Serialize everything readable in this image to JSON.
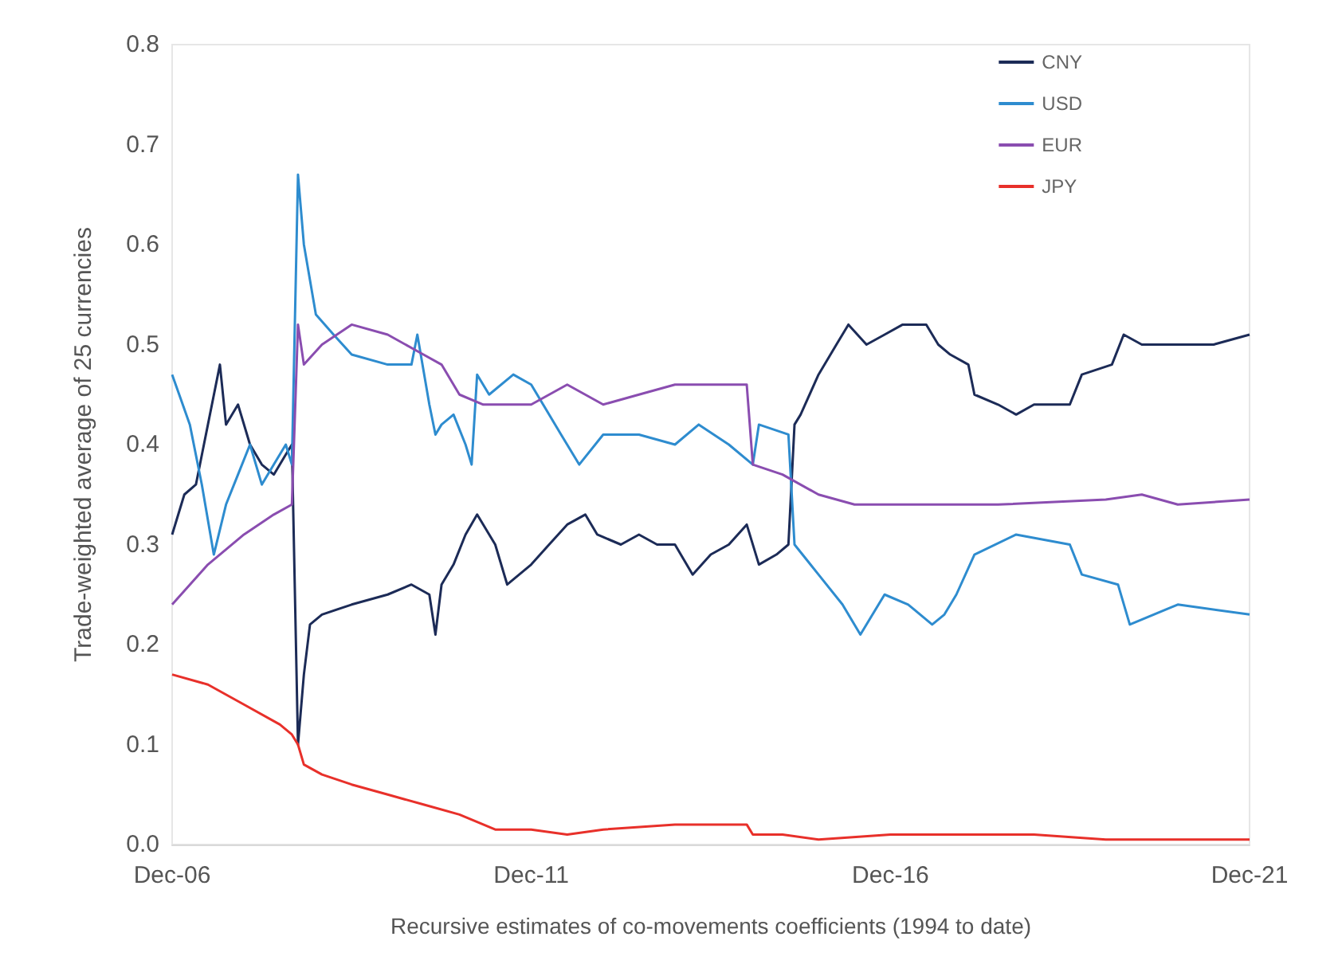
{
  "chart_data": {
    "type": "line",
    "xlabel": "Recursive estimates of co-movements coefficients (1994 to date)",
    "ylabel": "Trade-weighted average of 25 currencies",
    "xlim": [
      "2006-12",
      "2021-12"
    ],
    "xticks": [
      {
        "value": "2006-12",
        "label": "Dec-06"
      },
      {
        "value": "2011-12",
        "label": "Dec-11"
      },
      {
        "value": "2016-12",
        "label": "Dec-16"
      },
      {
        "value": "2021-12",
        "label": "Dec-21"
      }
    ],
    "ylim": [
      0,
      0.8
    ],
    "yticks": [
      {
        "value": 0,
        "label": "0.0"
      },
      {
        "value": 0.1,
        "label": "0.1"
      },
      {
        "value": 0.2,
        "label": "0.2"
      },
      {
        "value": 0.3,
        "label": "0.3"
      },
      {
        "value": 0.4,
        "label": "0.4"
      },
      {
        "value": 0.5,
        "label": "0.5"
      },
      {
        "value": 0.6,
        "label": "0.6"
      },
      {
        "value": 0.7,
        "label": "0.7"
      },
      {
        "value": 0.8,
        "label": "0.8"
      }
    ],
    "grid": false,
    "legend": "top right",
    "marker": "none",
    "line_style": "solid",
    "series": [
      {
        "name": "CNY",
        "color": "#1c2b57",
        "x": [
          "2006-12",
          "2007-02",
          "2007-04",
          "2007-06",
          "2007-08",
          "2007-09",
          "2007-11",
          "2008-01",
          "2008-03",
          "2008-05",
          "2008-07",
          "2008-08",
          "2008-09",
          "2008-10",
          "2008-11",
          "2009-01",
          "2009-06",
          "2009-12",
          "2010-04",
          "2010-07",
          "2010-08",
          "2010-09",
          "2010-11",
          "2011-01",
          "2011-03",
          "2011-06",
          "2011-08",
          "2011-10",
          "2011-12",
          "2012-03",
          "2012-06",
          "2012-09",
          "2012-11",
          "2013-03",
          "2013-06",
          "2013-09",
          "2013-12",
          "2014-03",
          "2014-06",
          "2014-09",
          "2014-12",
          "2015-02",
          "2015-05",
          "2015-07",
          "2015-08",
          "2015-09",
          "2015-12",
          "2016-03",
          "2016-05",
          "2016-08",
          "2016-11",
          "2017-02",
          "2017-06",
          "2017-08",
          "2017-10",
          "2018-01",
          "2018-02",
          "2018-06",
          "2018-09",
          "2018-12",
          "2019-06",
          "2019-08",
          "2020-01",
          "2020-03",
          "2020-06",
          "2020-12",
          "2021-06",
          "2021-12"
        ],
        "values": [
          0.31,
          0.35,
          0.36,
          0.42,
          0.48,
          0.42,
          0.44,
          0.4,
          0.38,
          0.37,
          0.39,
          0.4,
          0.1,
          0.17,
          0.22,
          0.23,
          0.24,
          0.25,
          0.26,
          0.25,
          0.21,
          0.26,
          0.28,
          0.31,
          0.33,
          0.3,
          0.26,
          0.27,
          0.28,
          0.3,
          0.32,
          0.33,
          0.31,
          0.3,
          0.31,
          0.3,
          0.3,
          0.27,
          0.29,
          0.3,
          0.32,
          0.28,
          0.29,
          0.3,
          0.42,
          0.43,
          0.47,
          0.5,
          0.52,
          0.5,
          0.51,
          0.52,
          0.52,
          0.5,
          0.49,
          0.48,
          0.45,
          0.44,
          0.43,
          0.44,
          0.44,
          0.47,
          0.48,
          0.51,
          0.5,
          0.5,
          0.5,
          0.51
        ]
      },
      {
        "name": "USD",
        "color": "#2e8ccf",
        "x": [
          "2006-12",
          "2007-03",
          "2007-05",
          "2007-07",
          "2007-09",
          "2007-11",
          "2008-01",
          "2008-03",
          "2008-05",
          "2008-07",
          "2008-08",
          "2008-09",
          "2008-10",
          "2008-12",
          "2009-03",
          "2009-06",
          "2009-12",
          "2010-04",
          "2010-05",
          "2010-07",
          "2010-08",
          "2010-09",
          "2010-11",
          "2011-01",
          "2011-02",
          "2011-03",
          "2011-05",
          "2011-09",
          "2011-12",
          "2012-05",
          "2012-08",
          "2012-12",
          "2013-06",
          "2013-12",
          "2014-04",
          "2014-09",
          "2015-01",
          "2015-02",
          "2015-07",
          "2015-08",
          "2015-12",
          "2016-04",
          "2016-07",
          "2016-11",
          "2017-03",
          "2017-07",
          "2017-09",
          "2017-11",
          "2018-02",
          "2018-09",
          "2019-06",
          "2019-08",
          "2020-02",
          "2020-04",
          "2020-12",
          "2021-12"
        ],
        "values": [
          0.47,
          0.42,
          0.36,
          0.29,
          0.34,
          0.37,
          0.4,
          0.36,
          0.38,
          0.4,
          0.38,
          0.67,
          0.6,
          0.53,
          0.51,
          0.49,
          0.48,
          0.48,
          0.51,
          0.44,
          0.41,
          0.42,
          0.43,
          0.4,
          0.38,
          0.47,
          0.45,
          0.47,
          0.46,
          0.41,
          0.38,
          0.41,
          0.41,
          0.4,
          0.42,
          0.4,
          0.38,
          0.42,
          0.41,
          0.3,
          0.27,
          0.24,
          0.21,
          0.25,
          0.24,
          0.22,
          0.23,
          0.25,
          0.29,
          0.31,
          0.3,
          0.27,
          0.26,
          0.22,
          0.24,
          0.23
        ]
      },
      {
        "name": "EUR",
        "color": "#8a4db0",
        "x": [
          "2006-12",
          "2007-06",
          "2007-12",
          "2008-05",
          "2008-08",
          "2008-09",
          "2008-10",
          "2009-01",
          "2009-06",
          "2009-12",
          "2010-06",
          "2010-09",
          "2010-12",
          "2011-04",
          "2011-12",
          "2012-06",
          "2012-12",
          "2013-06",
          "2013-12",
          "2014-06",
          "2014-12",
          "2015-01",
          "2015-06",
          "2015-12",
          "2016-06",
          "2016-12",
          "2017-06",
          "2017-12",
          "2018-06",
          "2019-12",
          "2020-06",
          "2020-12",
          "2021-12"
        ],
        "values": [
          0.24,
          0.28,
          0.31,
          0.33,
          0.34,
          0.52,
          0.48,
          0.5,
          0.52,
          0.51,
          0.49,
          0.48,
          0.45,
          0.44,
          0.44,
          0.46,
          0.44,
          0.45,
          0.46,
          0.46,
          0.46,
          0.38,
          0.37,
          0.35,
          0.34,
          0.34,
          0.34,
          0.34,
          0.34,
          0.345,
          0.35,
          0.34,
          0.345
        ]
      },
      {
        "name": "JPY",
        "color": "#e8302a",
        "x": [
          "2006-12",
          "2007-06",
          "2007-12",
          "2008-06",
          "2008-08",
          "2008-09",
          "2008-10",
          "2009-01",
          "2009-06",
          "2009-12",
          "2010-06",
          "2010-12",
          "2011-06",
          "2011-12",
          "2012-06",
          "2012-12",
          "2013-12",
          "2014-12",
          "2015-01",
          "2015-06",
          "2015-12",
          "2016-12",
          "2017-12",
          "2018-12",
          "2019-12",
          "2020-12",
          "2021-12"
        ],
        "values": [
          0.17,
          0.16,
          0.14,
          0.12,
          0.11,
          0.1,
          0.08,
          0.07,
          0.06,
          0.05,
          0.04,
          0.03,
          0.015,
          0.015,
          0.01,
          0.015,
          0.02,
          0.02,
          0.01,
          0.01,
          0.005,
          0.01,
          0.01,
          0.01,
          0.005,
          0.005,
          0.005
        ]
      }
    ]
  }
}
